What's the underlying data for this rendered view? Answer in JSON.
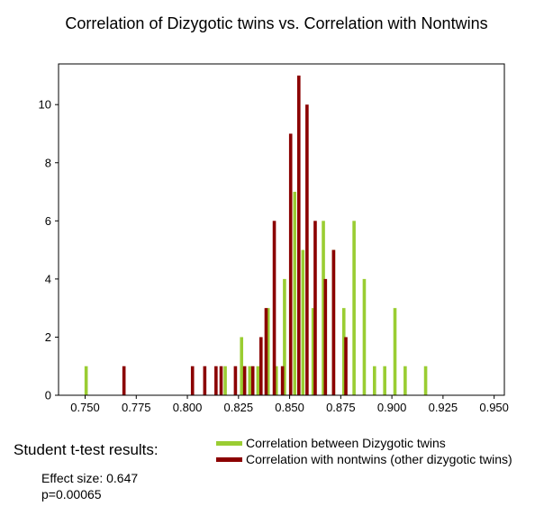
{
  "chart_data": {
    "type": "bar",
    "title": "Correlation of Dizygotic twins vs. Correlation with Nontwins",
    "xlabel": "",
    "ylabel": "",
    "xlim": [
      0.737,
      0.955
    ],
    "ylim": [
      0,
      11.4
    ],
    "xticks": [
      0.75,
      0.775,
      0.8,
      0.825,
      0.85,
      0.875,
      0.9,
      0.925,
      0.95
    ],
    "xtick_labels": [
      "0.750",
      "0.775",
      "0.800",
      "0.825",
      "0.850",
      "0.875",
      "0.900",
      "0.925",
      "0.950"
    ],
    "yticks": [
      0,
      2,
      4,
      6,
      8,
      10
    ],
    "ytick_labels": [
      "0",
      "2",
      "4",
      "6",
      "8",
      "10"
    ],
    "grid": false,
    "legend_position": "bottom-right-outside",
    "series": [
      {
        "name": "Correlation between Dizygotic twins",
        "color": "#9acd32",
        "x": [
          0.7505,
          0.8185,
          0.8265,
          0.8305,
          0.8345,
          0.8395,
          0.8435,
          0.8475,
          0.8525,
          0.8565,
          0.8615,
          0.8665,
          0.8715,
          0.8765,
          0.8815,
          0.8865,
          0.8915,
          0.8965,
          0.9015,
          0.9065,
          0.9165
        ],
        "values": [
          1,
          1,
          2,
          1,
          1,
          3,
          1,
          4,
          7,
          5,
          3,
          6,
          5,
          3,
          6,
          4,
          1,
          1,
          3,
          1,
          1
        ]
      },
      {
        "name": "Correlation with nontwins (other dizygotic twins)",
        "color": "#8b0000",
        "x": [
          0.769,
          0.8025,
          0.8085,
          0.814,
          0.8165,
          0.8235,
          0.828,
          0.832,
          0.836,
          0.8385,
          0.8425,
          0.8465,
          0.8505,
          0.8545,
          0.8585,
          0.8625,
          0.8675,
          0.8715,
          0.8775
        ],
        "values": [
          1,
          1,
          1,
          1,
          1,
          1,
          1,
          1,
          2,
          3,
          6,
          1,
          9,
          11,
          10,
          6,
          4,
          5,
          2
        ]
      }
    ]
  },
  "stats": {
    "heading": "Student t-test results:",
    "effect_size": "Effect size:  0.647",
    "p_value": "p=0.00065"
  }
}
